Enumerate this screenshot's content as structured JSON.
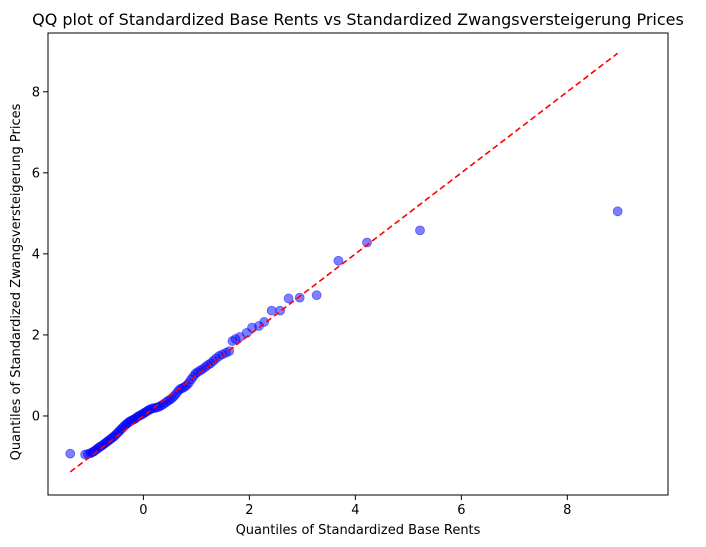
{
  "chart_data": {
    "type": "scatter",
    "title": "QQ plot of Standardized Base Rents vs Standardized Zwangsversteigerung Prices",
    "xlabel": "Quantiles of Standardized Base Rents",
    "ylabel": "Quantiles of Standardized Zwangsversteigerung Prices",
    "xlim": [
      -1.8,
      9.9
    ],
    "ylim": [
      -1.95,
      9.45
    ],
    "xticks": [
      0,
      2,
      4,
      6,
      8
    ],
    "yticks": [
      0,
      2,
      4,
      6,
      8
    ],
    "grid": false,
    "point_color": "#0000ff",
    "point_opacity": 0.5,
    "reference_line": {
      "x": [
        -1.38,
        8.95
      ],
      "y": [
        -1.38,
        8.95
      ],
      "color": "#ff0000",
      "style": "dashed"
    },
    "points": [
      [
        -1.38,
        -0.93
      ],
      [
        -1.1,
        -0.95
      ],
      [
        -1.05,
        -0.94
      ],
      [
        -1.0,
        -0.92
      ],
      [
        -0.97,
        -0.9
      ],
      [
        -0.94,
        -0.88
      ],
      [
        -0.91,
        -0.85
      ],
      [
        -0.88,
        -0.82
      ],
      [
        -0.85,
        -0.79
      ],
      [
        -0.82,
        -0.76
      ],
      [
        -0.79,
        -0.74
      ],
      [
        -0.76,
        -0.71
      ],
      [
        -0.73,
        -0.68
      ],
      [
        -0.7,
        -0.65
      ],
      [
        -0.67,
        -0.62
      ],
      [
        -0.64,
        -0.59
      ],
      [
        -0.61,
        -0.56
      ],
      [
        -0.58,
        -0.53
      ],
      [
        -0.55,
        -0.5
      ],
      [
        -0.52,
        -0.46
      ],
      [
        -0.49,
        -0.42
      ],
      [
        -0.46,
        -0.38
      ],
      [
        -0.43,
        -0.34
      ],
      [
        -0.4,
        -0.3
      ],
      [
        -0.37,
        -0.26
      ],
      [
        -0.34,
        -0.22
      ],
      [
        -0.31,
        -0.19
      ],
      [
        -0.28,
        -0.16
      ],
      [
        -0.25,
        -0.13
      ],
      [
        -0.22,
        -0.11
      ],
      [
        -0.19,
        -0.09
      ],
      [
        -0.16,
        -0.07
      ],
      [
        -0.13,
        -0.04
      ],
      [
        -0.1,
        -0.01
      ],
      [
        -0.07,
        0.01
      ],
      [
        -0.04,
        0.03
      ],
      [
        -0.01,
        0.05
      ],
      [
        0.02,
        0.08
      ],
      [
        0.05,
        0.1
      ],
      [
        0.08,
        0.13
      ],
      [
        0.11,
        0.15
      ],
      [
        0.14,
        0.17
      ],
      [
        0.18,
        0.19
      ],
      [
        0.22,
        0.2
      ],
      [
        0.26,
        0.21
      ],
      [
        0.3,
        0.23
      ],
      [
        0.34,
        0.26
      ],
      [
        0.38,
        0.29
      ],
      [
        0.42,
        0.33
      ],
      [
        0.46,
        0.37
      ],
      [
        0.5,
        0.4
      ],
      [
        0.54,
        0.44
      ],
      [
        0.58,
        0.49
      ],
      [
        0.62,
        0.55
      ],
      [
        0.66,
        0.62
      ],
      [
        0.7,
        0.67
      ],
      [
        0.74,
        0.69
      ],
      [
        0.78,
        0.72
      ],
      [
        0.82,
        0.76
      ],
      [
        0.86,
        0.82
      ],
      [
        0.9,
        0.9
      ],
      [
        0.94,
        0.97
      ],
      [
        0.98,
        1.04
      ],
      [
        1.02,
        1.08
      ],
      [
        1.07,
        1.12
      ],
      [
        1.12,
        1.16
      ],
      [
        1.17,
        1.21
      ],
      [
        1.22,
        1.26
      ],
      [
        1.27,
        1.3
      ],
      [
        1.32,
        1.36
      ],
      [
        1.37,
        1.42
      ],
      [
        1.43,
        1.48
      ],
      [
        1.49,
        1.52
      ],
      [
        1.56,
        1.56
      ],
      [
        1.62,
        1.6
      ],
      [
        1.68,
        1.85
      ],
      [
        1.74,
        1.9
      ],
      [
        1.82,
        1.95
      ],
      [
        1.95,
        2.05
      ],
      [
        2.05,
        2.18
      ],
      [
        2.18,
        2.22
      ],
      [
        2.28,
        2.32
      ],
      [
        2.42,
        2.6
      ],
      [
        2.58,
        2.6
      ],
      [
        2.74,
        2.9
      ],
      [
        2.95,
        2.92
      ],
      [
        3.27,
        2.98
      ],
      [
        3.68,
        3.83
      ],
      [
        4.22,
        4.28
      ],
      [
        5.22,
        4.58
      ],
      [
        8.95,
        5.05
      ]
    ]
  }
}
